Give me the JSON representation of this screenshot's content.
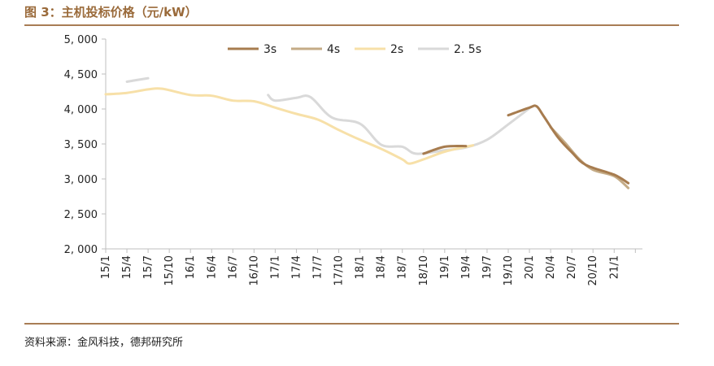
{
  "figure": {
    "title": "图 3：主机投标价格（元/kW）",
    "source": "资料来源：金风科技，德邦研究所"
  },
  "chart_data": {
    "type": "line",
    "title": "",
    "xlabel": "",
    "ylabel": "",
    "ylim": [
      2000,
      5000
    ],
    "ytick_labels": [
      "5, 000",
      "4, 500",
      "4, 000",
      "3, 500",
      "3, 000",
      "2, 500",
      "2, 000"
    ],
    "yticks": [
      5000,
      4500,
      4000,
      3500,
      3000,
      2500,
      2000
    ],
    "x_labels": [
      "15/1",
      "15/4",
      "15/7",
      "15/10",
      "16/1",
      "16/4",
      "16/7",
      "16/10",
      "17/1",
      "17/4",
      "17/7",
      "17/10",
      "18/1",
      "18/4",
      "18/7",
      "18/10",
      "19/1",
      "19/4",
      "19/7",
      "19/10",
      "20/1",
      "20/4",
      "20/7",
      "20/10",
      "21/1"
    ],
    "legend_position": "top-right",
    "series": [
      {
        "name": "3s",
        "color": "#a77c4f",
        "values": [
          [
            "18/10",
            3360
          ],
          [
            "19/1",
            3460
          ],
          [
            "19/4",
            3470
          ],
          null,
          [
            "19/10",
            3910
          ],
          [
            "20/1",
            4020
          ],
          [
            "20/2",
            4040
          ],
          [
            "20/3",
            3900
          ],
          [
            "20/5",
            3600
          ],
          [
            "20/7",
            3380
          ],
          [
            "20/9",
            3200
          ],
          [
            "21/1",
            3060
          ],
          [
            "21/3",
            2940
          ]
        ]
      },
      {
        "name": "4s",
        "color": "#c4ab86",
        "values": [
          [
            "20/4",
            3740
          ],
          [
            "20/6",
            3520
          ],
          [
            "20/8",
            3290
          ],
          [
            "20/10",
            3130
          ],
          [
            "21/1",
            3040
          ],
          [
            "21/3",
            2870
          ]
        ]
      },
      {
        "name": "2s",
        "color": "#f7e0a8",
        "values": [
          [
            "15/1",
            4210
          ],
          [
            "15/4",
            4230
          ],
          [
            "15/7",
            4280
          ],
          [
            "15/9",
            4290
          ],
          [
            "16/1",
            4200
          ],
          [
            "16/4",
            4190
          ],
          [
            "16/7",
            4120
          ],
          [
            "16/10",
            4110
          ],
          [
            "17/1",
            4020
          ],
          [
            "17/4",
            3930
          ],
          [
            "17/7",
            3850
          ],
          [
            "17/10",
            3700
          ],
          [
            "18/1",
            3560
          ],
          [
            "18/4",
            3430
          ],
          [
            "18/7",
            3280
          ],
          [
            "18/8",
            3220
          ],
          [
            "18/10",
            3280
          ],
          [
            "19/1",
            3390
          ],
          [
            "19/4",
            3460
          ],
          [
            "19/5",
            3480
          ]
        ]
      },
      {
        "name": "2. 5s",
        "color": "#d9d9d9",
        "values": [
          [
            "15/4",
            4390
          ],
          [
            "15/7",
            4440
          ],
          null,
          [
            "16/12",
            4200
          ],
          [
            "17/1",
            4120
          ],
          [
            "17/4",
            4160
          ],
          [
            "17/6",
            4170
          ],
          [
            "17/9",
            3880
          ],
          [
            "18/1",
            3790
          ],
          [
            "18/4",
            3490
          ],
          [
            "18/7",
            3460
          ],
          [
            "18/9",
            3360
          ],
          [
            "19/1",
            3410
          ],
          [
            "19/4",
            3450
          ],
          [
            "19/7",
            3560
          ],
          [
            "19/10",
            3780
          ],
          [
            "20/1",
            4010
          ]
        ]
      }
    ]
  }
}
